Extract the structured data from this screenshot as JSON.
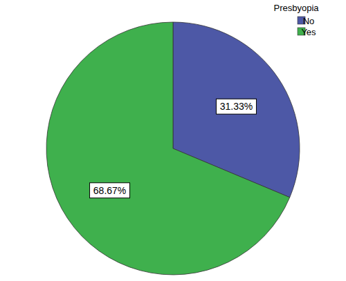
{
  "chart_data": {
    "type": "pie",
    "legend_title": "Presbyopia",
    "categories": [
      "No",
      "Yes"
    ],
    "values": [
      31.33,
      68.67
    ],
    "value_labels": [
      "31.33%",
      "68.67%"
    ],
    "colors": [
      "#4d58a6",
      "#3fb04d"
    ],
    "data_labels": true,
    "legend": "top-right"
  }
}
